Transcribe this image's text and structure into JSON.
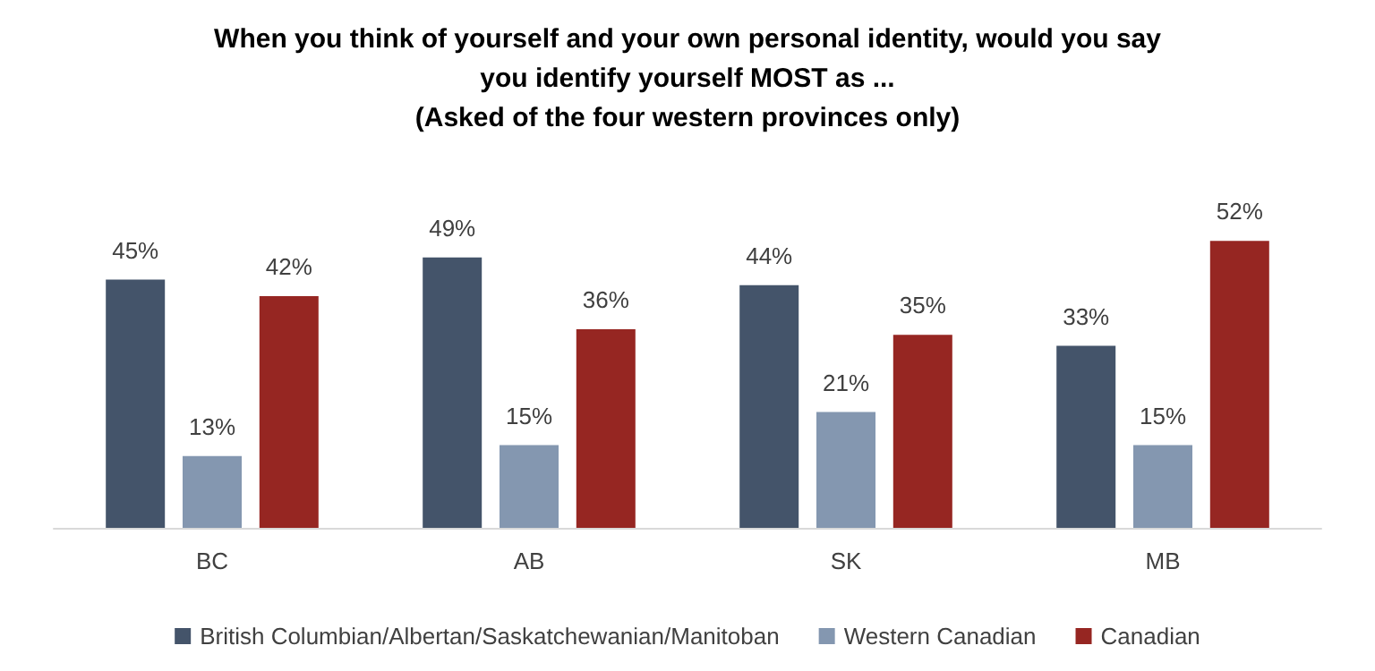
{
  "chart_data": {
    "type": "bar",
    "title": "When you think of yourself and your own personal identity, would you say\nyou identify yourself MOST as ...\n(Asked of the four western provinces only)",
    "categories": [
      "BC",
      "AB",
      "SK",
      "MB"
    ],
    "series": [
      {
        "name": "British Columbian/Albertan/Saskatchewanian/Manitoban",
        "color": "#44546a",
        "values": [
          45,
          49,
          44,
          33
        ],
        "value_labels": [
          "45%",
          "49%",
          "44%",
          "33%"
        ]
      },
      {
        "name": "Western Canadian",
        "color": "#8497b0",
        "values": [
          13,
          15,
          21,
          15
        ],
        "value_labels": [
          "13%",
          "15%",
          "21%",
          "15%"
        ]
      },
      {
        "name": "Canadian",
        "color": "#962622",
        "values": [
          42,
          36,
          35,
          52
        ],
        "value_labels": [
          "42%",
          "36%",
          "35%",
          "52%"
        ]
      }
    ],
    "legend": "bottom"
  }
}
